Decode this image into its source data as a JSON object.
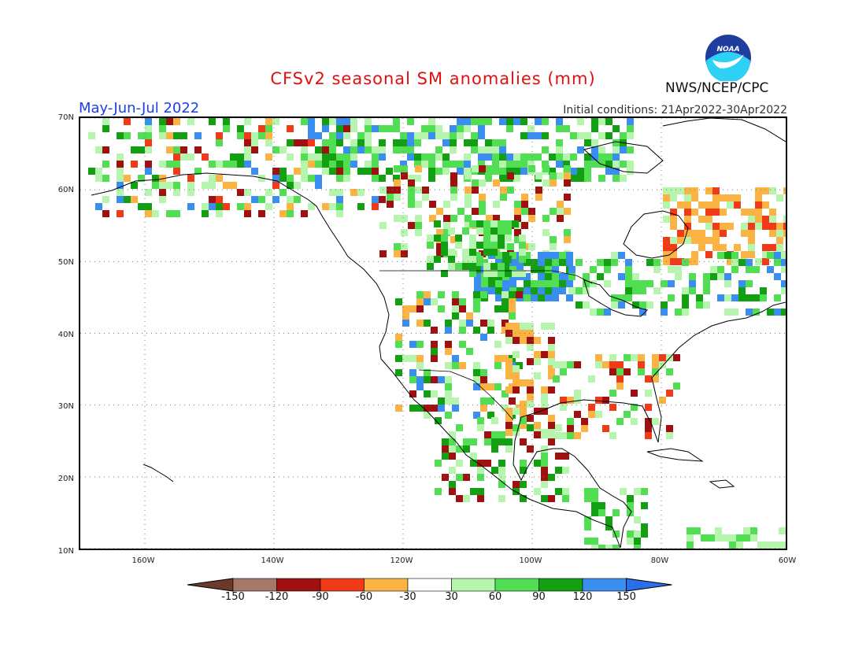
{
  "title": "CFSv2 seasonal SM anomalies (mm)",
  "season": "May-Jun-Jul 2022",
  "initial_conditions": "Initial conditions: 21Apr2022-30Apr2022",
  "org": "NWS/NCEP/CPC",
  "logo_text": "NOAA",
  "lat_labels": [
    "70N",
    "60N",
    "50N",
    "40N",
    "30N",
    "20N",
    "10N"
  ],
  "lon_labels": [
    "160W",
    "140W",
    "120W",
    "100W",
    "80W",
    "60W"
  ],
  "colorbar": {
    "ticks": [
      "-150",
      "-120",
      "-90",
      "-60",
      "-30",
      "30",
      "60",
      "90",
      "120",
      "150"
    ],
    "colors": [
      "#6b3a2a",
      "#a6786a",
      "#a01010",
      "#f03a18",
      "#fbb443",
      "#ffffff",
      "#b6f5ae",
      "#52de52",
      "#12a012",
      "#3a8ef0",
      "#2b6fe8"
    ]
  },
  "anomaly_colors": {
    "light_green": "#b6f5ae",
    "green": "#52de52",
    "dark_green": "#12a012",
    "blue": "#3a8ef0",
    "orange": "#fbb443",
    "red_orange": "#f03a18",
    "dark_red": "#a01010",
    "brown": "#a6786a"
  }
}
